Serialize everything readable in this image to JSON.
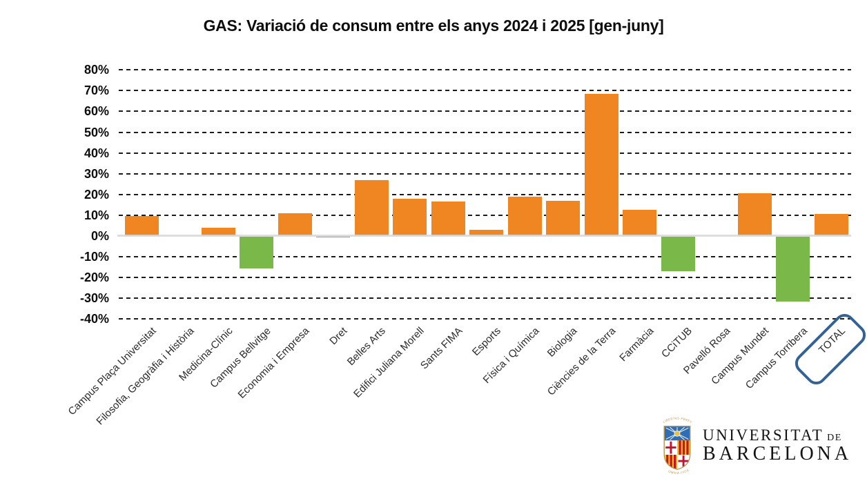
{
  "chart_data": {
    "type": "bar",
    "title": "GAS: Variació de consum entre els anys 2024 i 2025 [gen-juny]",
    "categories": [
      "Campus Plaça Universitat",
      "Filosofia, Geogràfia i Història",
      "Medicina-Clínic",
      "Campus Bellvitge",
      "Economia i Empresa",
      "Dret",
      "Belles Arts",
      "Edifici Juliana Morell",
      "Sants FIMA",
      "Esports",
      "Física i Química",
      "Biologia",
      "Ciències de la Terra",
      "Farmàcia",
      "CCiTUB",
      "Pavelló Rosa",
      "Campus Mundet",
      "Campus Torribera",
      "TOTAL"
    ],
    "values": [
      9.5,
      0,
      4,
      -15.5,
      11,
      -0.5,
      27,
      18,
      16.5,
      3,
      19,
      17,
      68.5,
      12.5,
      -17,
      0,
      20.5,
      -31.5,
      10.5
    ],
    "value_unit": "%",
    "ylim": [
      -40,
      80
    ],
    "ytick_values": [
      80,
      70,
      60,
      50,
      40,
      30,
      20,
      10,
      0,
      -10,
      -20,
      -30,
      -40
    ],
    "ytick_labels": [
      "80%",
      "70%",
      "60%",
      "50%",
      "40%",
      "30%",
      "20%",
      "10%",
      "0%",
      "-10%",
      "-20%",
      "-30%",
      "-40%"
    ],
    "xlabel": "",
    "ylabel": "",
    "grid": "horizontal-dashed",
    "legend": "none",
    "highlighted_category": "TOTAL",
    "colors": {
      "positive": "#EF8622",
      "negative": "#7AB949",
      "total_box": "#356292",
      "baseline": "#D9D9D9",
      "gridline": "#1A1A1A"
    }
  },
  "logo": {
    "institution_line1": "UNIVERSITAT",
    "institution_line1_suffix": "DE",
    "institution_line2": "BARCELONA",
    "crest_motto_top": "LIBERTAS PERFVNDET",
    "crest_motto_bottom": "OMNIA LVCE"
  }
}
